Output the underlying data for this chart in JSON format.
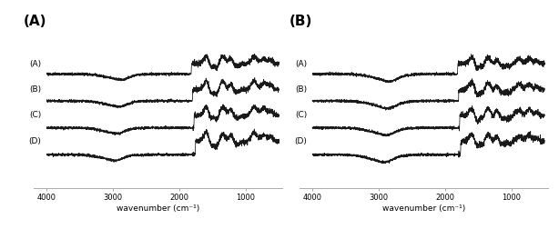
{
  "panel_labels": [
    "(A)",
    "(B)"
  ],
  "trace_labels": [
    "(A)",
    "(B)",
    "(C)",
    "(D)"
  ],
  "x_ticks": [
    4000,
    3000,
    2000,
    1000
  ],
  "xlabel": "wavenumber (cm⁻¹)",
  "background_color": "#ffffff",
  "line_color": "#1a1a1a",
  "line_width": 0.55,
  "panel_label_fontsize": 11,
  "trace_label_fontsize": 6.5,
  "xlabel_fontsize": 6.5,
  "tick_fontsize": 6.0
}
